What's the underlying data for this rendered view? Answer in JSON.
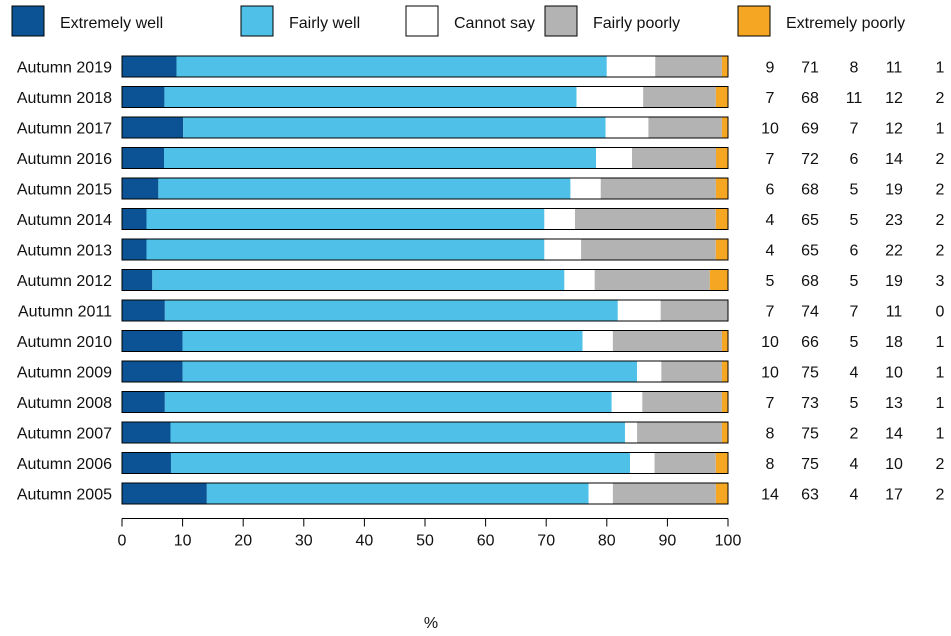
{
  "chart_data": {
    "type": "bar",
    "stacked": true,
    "orientation": "horizontal",
    "title": "",
    "xlabel": "%",
    "ylabel": "",
    "xlim": [
      0,
      100
    ],
    "xticks": [
      0,
      10,
      20,
      30,
      40,
      50,
      60,
      70,
      80,
      90,
      100
    ],
    "legend_position": "top",
    "categories": [
      "Autumn 2019",
      "Autumn 2018",
      "Autumn 2017",
      "Autumn 2016",
      "Autumn 2015",
      "Autumn 2014",
      "Autumn 2013",
      "Autumn 2012",
      "Autumn 2011",
      "Autumn 2010",
      "Autumn 2009",
      "Autumn 2008",
      "Autumn 2007",
      "Autumn 2006",
      "Autumn 2005"
    ],
    "series": [
      {
        "name": "Extremely well",
        "color": "#0b5394",
        "values": [
          9,
          7,
          10,
          7,
          6,
          4,
          4,
          5,
          7,
          10,
          10,
          7,
          8,
          8,
          14
        ]
      },
      {
        "name": "Fairly well",
        "color": "#4fc1e9",
        "values": [
          71,
          68,
          69,
          72,
          68,
          65,
          65,
          68,
          74,
          66,
          75,
          73,
          75,
          75,
          63
        ]
      },
      {
        "name": "Cannot say",
        "color": "#ffffff",
        "values": [
          8,
          11,
          7,
          6,
          5,
          5,
          6,
          5,
          7,
          5,
          4,
          5,
          2,
          4,
          4
        ]
      },
      {
        "name": "Fairly poorly",
        "color": "#b3b3b3",
        "values": [
          11,
          12,
          12,
          14,
          19,
          23,
          22,
          19,
          11,
          18,
          10,
          13,
          14,
          10,
          17
        ]
      },
      {
        "name": "Extremely poorly",
        "color": "#f5a623",
        "values": [
          1,
          2,
          1,
          2,
          2,
          2,
          2,
          3,
          0,
          1,
          1,
          1,
          1,
          2,
          2
        ]
      }
    ]
  }
}
